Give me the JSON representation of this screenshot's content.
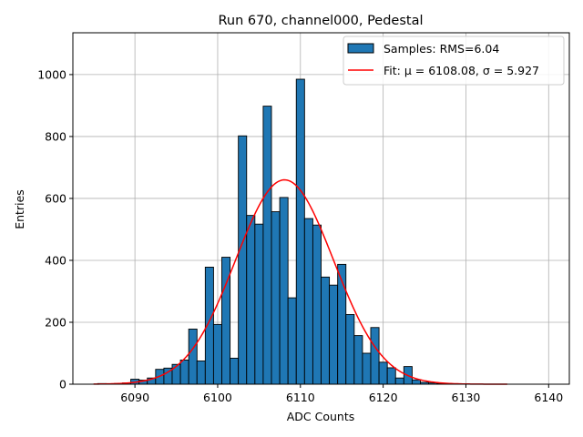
{
  "chart_data": {
    "type": "bar",
    "title": "Run 670, channel000, Pedestal",
    "xlabel": "ADC Counts",
    "ylabel": "Entries",
    "xlim": [
      6082.5,
      6142.5
    ],
    "ylim": [
      0,
      1135
    ],
    "xticks": [
      6090,
      6100,
      6110,
      6120,
      6130,
      6140
    ],
    "yticks": [
      0,
      200,
      400,
      600,
      800,
      1000
    ],
    "grid": true,
    "legend_position": "top-right",
    "bin_width": 1,
    "series": [
      {
        "name": "Samples: RMS=6.04",
        "kind": "histogram",
        "color": "#1f77b4",
        "edgecolor": "#000000",
        "x": [
          6086,
          6087,
          6088,
          6089,
          6090,
          6091,
          6092,
          6093,
          6094,
          6095,
          6096,
          6097,
          6098,
          6099,
          6100,
          6101,
          6102,
          6103,
          6104,
          6105,
          6106,
          6107,
          6108,
          6109,
          6110,
          6111,
          6112,
          6113,
          6114,
          6115,
          6116,
          6117,
          6118,
          6119,
          6120,
          6121,
          6122,
          6123,
          6124,
          6125,
          6126,
          6127,
          6128
        ],
        "values": [
          2,
          1,
          2,
          4,
          16,
          13,
          20,
          48,
          52,
          64,
          78,
          178,
          75,
          378,
          193,
          410,
          84,
          802,
          545,
          517,
          898,
          557,
          603,
          279,
          985,
          535,
          514,
          346,
          320,
          387,
          225,
          157,
          100,
          183,
          71,
          53,
          20,
          57,
          14,
          6,
          4,
          2,
          1
        ]
      },
      {
        "name": "Fit: μ = 6108.08, σ = 5.927",
        "kind": "gaussian-fit",
        "color": "#ff0000",
        "mu": 6108.08,
        "sigma": 5.927,
        "amplitude": 660,
        "x_range": [
          6085,
          6135
        ]
      }
    ]
  }
}
